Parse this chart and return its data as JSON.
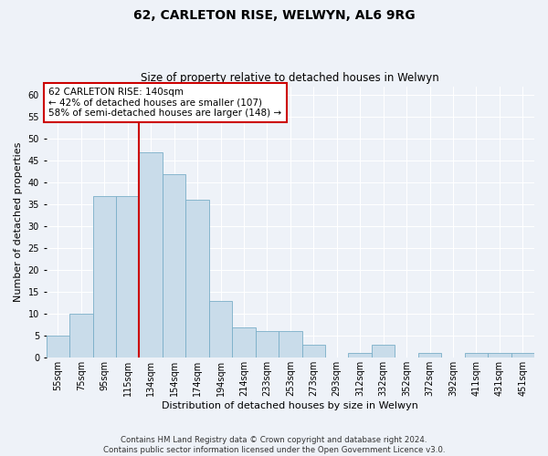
{
  "title1": "62, CARLETON RISE, WELWYN, AL6 9RG",
  "title2": "Size of property relative to detached houses in Welwyn",
  "xlabel": "Distribution of detached houses by size in Welwyn",
  "ylabel": "Number of detached properties",
  "categories": [
    "55sqm",
    "75sqm",
    "95sqm",
    "115sqm",
    "134sqm",
    "154sqm",
    "174sqm",
    "194sqm",
    "214sqm",
    "233sqm",
    "253sqm",
    "273sqm",
    "293sqm",
    "312sqm",
    "332sqm",
    "352sqm",
    "372sqm",
    "392sqm",
    "411sqm",
    "431sqm",
    "451sqm"
  ],
  "values": [
    5,
    10,
    37,
    37,
    47,
    42,
    36,
    13,
    7,
    6,
    6,
    3,
    0,
    1,
    3,
    0,
    1,
    0,
    1,
    1,
    1
  ],
  "bar_color": "#c9dcea",
  "bar_edge_color": "#7aaec8",
  "vline_x": 3.5,
  "vline_color": "#cc0000",
  "ylim": [
    0,
    62
  ],
  "yticks": [
    0,
    5,
    10,
    15,
    20,
    25,
    30,
    35,
    40,
    45,
    50,
    55,
    60
  ],
  "annotation_text": "62 CARLETON RISE: 140sqm\n← 42% of detached houses are smaller (107)\n58% of semi-detached houses are larger (148) →",
  "annotation_box_color": "#ffffff",
  "annotation_box_edge": "#cc0000",
  "footer": "Contains HM Land Registry data © Crown copyright and database right 2024.\nContains public sector information licensed under the Open Government Licence v3.0.",
  "bg_color": "#eef2f8",
  "grid_color": "#ffffff",
  "title1_fontsize": 10,
  "title2_fontsize": 8.5,
  "xlabel_fontsize": 8,
  "ylabel_fontsize": 8,
  "tick_fontsize": 7,
  "annot_fontsize": 7.5
}
